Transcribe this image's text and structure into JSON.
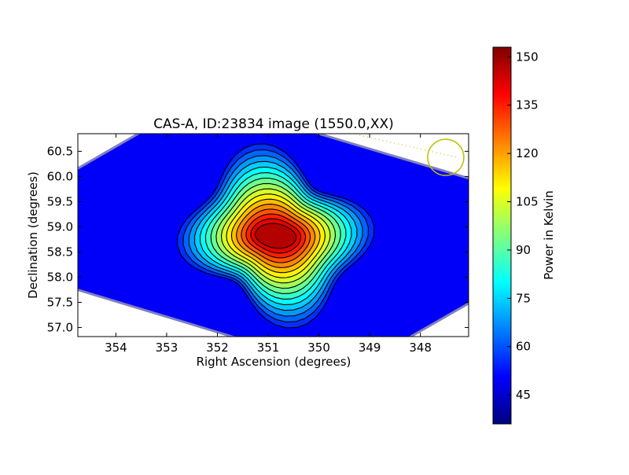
{
  "chart_data": [
    {
      "type": "heatmap",
      "title": "CAS-A, ID:23834 image (1550.0,XX)",
      "xlabel": "Right Ascension (degrees)",
      "ylabel": "Declination (degrees)",
      "xlim": [
        354.75,
        347.05
      ],
      "ylim": [
        56.82,
        60.85
      ],
      "x_ticks": [
        354,
        353,
        352,
        351,
        350,
        349,
        348
      ],
      "y_ticks": [
        57.0,
        57.5,
        58.0,
        58.5,
        59.0,
        59.5,
        60.0,
        60.5
      ],
      "x_tick_labels": [
        "354",
        "353",
        "352",
        "351",
        "350",
        "349",
        "348"
      ],
      "y_tick_labels": [
        "57.0",
        "57.5",
        "58.0",
        "58.5",
        "59.0",
        "59.5",
        "60.0",
        "60.5"
      ],
      "colormap": "jet",
      "background_level": 50,
      "peak": {
        "ra": 350.85,
        "dec": 58.82,
        "value": 153
      },
      "contours": {
        "count": 16,
        "color": "#000000"
      },
      "source_marker": {
        "type": "circle",
        "ra": 347.5,
        "dec": 60.38,
        "color": "#bfbf00"
      },
      "grid": false
    },
    {
      "type": "colorbar",
      "label": "Power in Kelvin",
      "range": [
        36,
        153
      ],
      "ticks": [
        45,
        60,
        75,
        90,
        105,
        120,
        135,
        150
      ],
      "tick_labels": [
        "45",
        "60",
        "75",
        "90",
        "105",
        "120",
        "135",
        "150"
      ],
      "colormap": "jet"
    }
  ]
}
